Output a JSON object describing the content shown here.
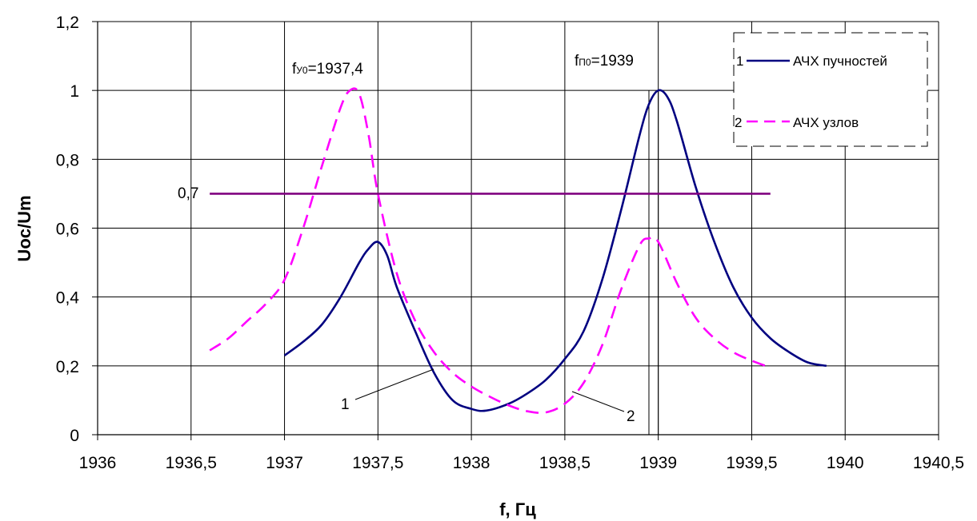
{
  "chart_data": {
    "type": "line",
    "title": "",
    "xlabel": "f, Гц",
    "ylabel": "Uoc/Um",
    "xlim": [
      1936,
      1940.5
    ],
    "ylim": [
      0,
      1.2
    ],
    "x_ticks": [
      "1936",
      "1936,5",
      "1937",
      "1937,5",
      "1938",
      "1938,5",
      "1939",
      "1939,5",
      "1940",
      "1940,5"
    ],
    "y_ticks": [
      "0",
      "0,2",
      "0,4",
      "0,6",
      "0,8",
      "1",
      "1,2"
    ],
    "grid": true,
    "legend_position": "top-right",
    "series": [
      {
        "name": "АЧХ пучностей",
        "marker": "1",
        "color": "#000080",
        "dash": "solid",
        "x": [
          1937,
          1937.1,
          1937.2,
          1937.3,
          1937.4,
          1937.45,
          1937.5,
          1937.55,
          1937.6,
          1937.7,
          1937.8,
          1937.9,
          1938,
          1938.08,
          1938.2,
          1938.3,
          1938.4,
          1938.5,
          1938.6,
          1938.7,
          1938.8,
          1938.9,
          1938.95,
          1939,
          1939.05,
          1939.1,
          1939.2,
          1939.3,
          1939.4,
          1939.5,
          1939.6,
          1939.7,
          1939.8,
          1939.9
        ],
        "y": [
          0.23,
          0.27,
          0.32,
          0.4,
          0.5,
          0.54,
          0.56,
          0.52,
          0.43,
          0.3,
          0.18,
          0.1,
          0.075,
          0.07,
          0.09,
          0.12,
          0.16,
          0.22,
          0.3,
          0.45,
          0.65,
          0.87,
          0.96,
          1.0,
          0.98,
          0.91,
          0.72,
          0.56,
          0.43,
          0.34,
          0.28,
          0.24,
          0.21,
          0.2
        ]
      },
      {
        "name": "АЧХ узлов",
        "marker": "2",
        "color": "#ff00ff",
        "dash": "dashed",
        "x": [
          1936.6,
          1936.7,
          1936.8,
          1936.9,
          1937,
          1937.1,
          1937.2,
          1937.3,
          1937.35,
          1937.4,
          1937.45,
          1937.5,
          1937.6,
          1937.7,
          1937.8,
          1937.9,
          1938,
          1938.1,
          1938.2,
          1938.3,
          1938.4,
          1938.5,
          1938.6,
          1938.7,
          1938.8,
          1938.9,
          1938.95,
          1939,
          1939.1,
          1939.2,
          1939.3,
          1939.4,
          1939.5,
          1939.6
        ],
        "y": [
          0.245,
          0.28,
          0.33,
          0.38,
          0.45,
          0.6,
          0.78,
          0.95,
          1.0,
          0.99,
          0.87,
          0.7,
          0.47,
          0.33,
          0.24,
          0.18,
          0.14,
          0.11,
          0.085,
          0.068,
          0.065,
          0.09,
          0.15,
          0.26,
          0.42,
          0.55,
          0.57,
          0.56,
          0.44,
          0.34,
          0.28,
          0.24,
          0.215,
          0.195
        ]
      },
      {
        "name": "",
        "color": "#800080",
        "dash": "solid",
        "x": [
          1936.6,
          1939.6
        ],
        "y": [
          0.7,
          0.7
        ]
      }
    ],
    "vertical_markers": [
      1938.95,
      1939
    ],
    "annotations": {
      "level_label": "0,7",
      "fy0_main": "f",
      "fy0_sub": "У0",
      "fy0_value": "=1937,4",
      "fp0_main": "f",
      "fp0_sub": "П0",
      "fp0_value": "=1939",
      "curve1_label": "1",
      "curve2_label": "2"
    }
  }
}
